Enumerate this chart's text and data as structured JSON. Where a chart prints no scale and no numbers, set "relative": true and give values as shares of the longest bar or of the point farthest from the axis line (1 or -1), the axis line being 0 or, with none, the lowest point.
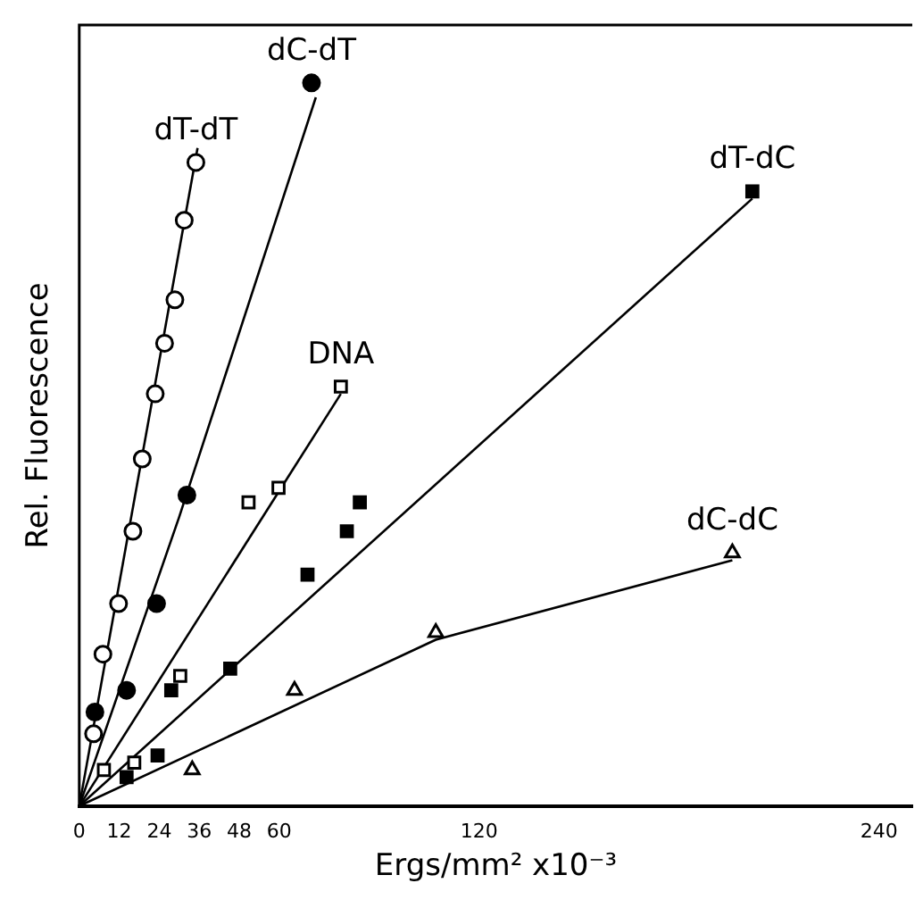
{
  "chart_data": {
    "type": "scatter",
    "relative": true,
    "xlabel": "Ergs/mm² x10⁻³",
    "ylabel": "Rel. Fluorescence",
    "xlim": [
      0,
      250
    ],
    "xticks": [
      0,
      12,
      24,
      36,
      48,
      60,
      120,
      240
    ],
    "grid": false,
    "legend": false,
    "series": [
      {
        "name": "dT-dT",
        "marker": "circle",
        "color": "#ffffff",
        "x": [
          4.3,
          7.1,
          11.8,
          16.1,
          18.9,
          22.8,
          25.6,
          28.7,
          31.5,
          35.0
        ],
        "values": [
          0.1,
          0.21,
          0.28,
          0.38,
          0.48,
          0.57,
          0.64,
          0.7,
          0.81,
          0.89
        ]
      },
      {
        "name": "dC-dT",
        "marker": "circle",
        "color": "#000000",
        "x": [
          4.7,
          14.2,
          23.2,
          32.3,
          69.7
        ],
        "values": [
          0.13,
          0.16,
          0.28,
          0.43,
          1.0
        ]
      },
      {
        "name": "DNA",
        "marker": "square",
        "color": "#ffffff",
        "x": [
          7.4,
          16.5,
          30.3,
          50.8,
          59.8,
          78.5
        ],
        "values": [
          0.05,
          0.06,
          0.18,
          0.42,
          0.44,
          0.58
        ]
      },
      {
        "name": "dT-dC",
        "marker": "square",
        "color": "#000000",
        "x": [
          14.2,
          23.5,
          27.6,
          45.3,
          68.5,
          80.3,
          84.2,
          202
        ],
        "values": [
          0.04,
          0.07,
          0.16,
          0.19,
          0.32,
          0.38,
          0.42,
          0.85
        ]
      },
      {
        "name": "dC-dC",
        "marker": "triangle",
        "color": "#ffffff",
        "x": [
          33.9,
          64.6,
          107,
          196
        ],
        "values": [
          0.05,
          0.16,
          0.24,
          0.35
        ]
      },
      {
        "type": "line",
        "marker": "none",
        "color": "#000000",
        "x": [
          0,
          35.5
        ],
        "values": [
          0,
          0.91
        ]
      },
      {
        "type": "line",
        "marker": "none",
        "color": "#000000",
        "x": [
          0,
          30,
          71
        ],
        "values": [
          0,
          0.4,
          0.98
        ]
      },
      {
        "type": "line",
        "marker": "none",
        "color": "#000000",
        "x": [
          0,
          78.5
        ],
        "values": [
          0,
          0.57
        ]
      },
      {
        "type": "line",
        "marker": "none",
        "color": "#000000",
        "x": [
          0,
          202
        ],
        "values": [
          0,
          0.84
        ]
      },
      {
        "type": "line",
        "marker": "none",
        "color": "#000000",
        "x": [
          0,
          107,
          196
        ],
        "values": [
          0,
          0.23,
          0.34
        ]
      }
    ]
  }
}
